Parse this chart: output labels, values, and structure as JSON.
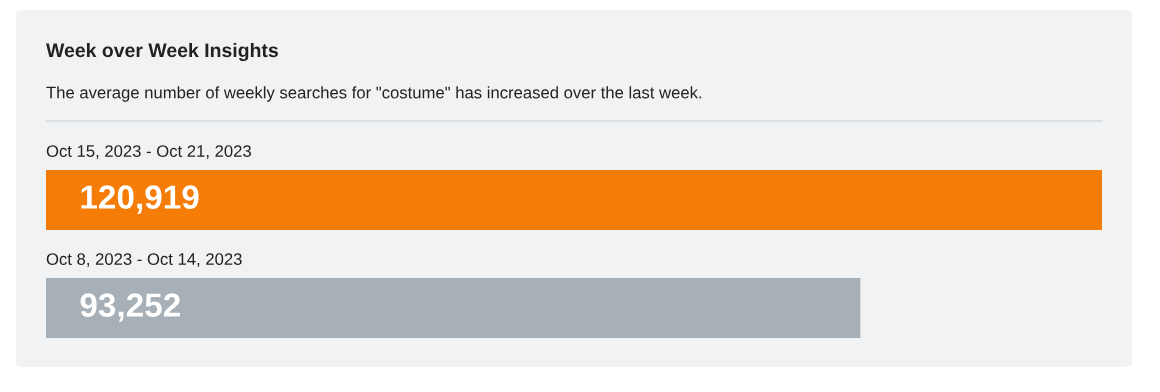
{
  "chart_data": {
    "type": "bar",
    "orientation": "horizontal",
    "title": "Week over Week Insights",
    "subtitle": "The average number of weekly searches for \"costume\" has increased over the last week.",
    "categories": [
      "Oct 15, 2023 - Oct 21, 2023",
      "Oct 8, 2023 - Oct 14, 2023"
    ],
    "values": [
      120919,
      93252
    ],
    "colors": [
      "#f57c06",
      "#a6b0b6"
    ],
    "value_labels": [
      "120,919",
      "93,252"
    ]
  }
}
